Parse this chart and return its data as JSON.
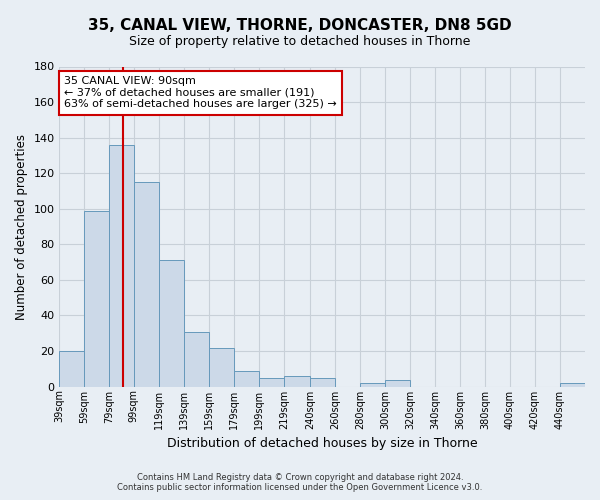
{
  "title": "35, CANAL VIEW, THORNE, DONCASTER, DN8 5GD",
  "subtitle": "Size of property relative to detached houses in Thorne",
  "xlabel": "Distribution of detached houses by size in Thorne",
  "ylabel": "Number of detached properties",
  "bar_color": "#ccd9e8",
  "bar_edge_color": "#6699bb",
  "bin_edges": [
    39,
    59,
    79,
    99,
    119,
    139,
    159,
    179,
    199,
    219,
    240,
    260,
    280,
    300,
    320,
    340,
    360,
    380,
    400,
    420,
    440,
    460
  ],
  "bin_labels": [
    "39sqm",
    "59sqm",
    "79sqm",
    "99sqm",
    "119sqm",
    "139sqm",
    "159sqm",
    "179sqm",
    "199sqm",
    "219sqm",
    "240sqm",
    "260sqm",
    "280sqm",
    "300sqm",
    "320sqm",
    "340sqm",
    "360sqm",
    "380sqm",
    "400sqm",
    "420sqm",
    "440sqm"
  ],
  "bar_heights": [
    20,
    99,
    136,
    115,
    71,
    31,
    22,
    9,
    5,
    6,
    5,
    0,
    2,
    4,
    0,
    0,
    0,
    0,
    0,
    0,
    2
  ],
  "ylim": [
    0,
    180
  ],
  "yticks": [
    0,
    20,
    40,
    60,
    80,
    100,
    120,
    140,
    160,
    180
  ],
  "vline_x": 90,
  "vline_color": "#cc0000",
  "annotation_title": "35 CANAL VIEW: 90sqm",
  "annotation_line1": "← 37% of detached houses are smaller (191)",
  "annotation_line2": "63% of semi-detached houses are larger (325) →",
  "annotation_box_color": "#ffffff",
  "annotation_box_edge": "#cc0000",
  "footer1": "Contains HM Land Registry data © Crown copyright and database right 2024.",
  "footer2": "Contains public sector information licensed under the Open Government Licence v3.0.",
  "background_color": "#e8eef4",
  "grid_color": "#c8d0d8"
}
